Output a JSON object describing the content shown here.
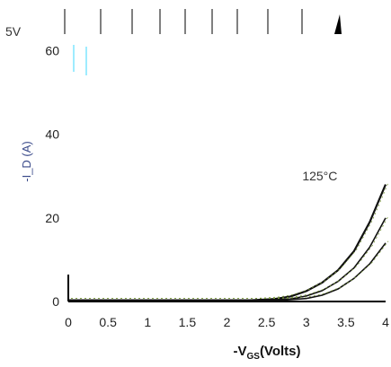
{
  "chart_data": {
    "type": "line",
    "title": "",
    "xlabel_main": "-V",
    "xlabel_sub": "GS",
    "xlabel_tail": "(Volts)",
    "ylabel": "-I_D (A)",
    "top_fragment": "5V",
    "xlim": [
      0,
      4
    ],
    "ylim": [
      0,
      70
    ],
    "x_ticks": [
      "0",
      "0.5",
      "1",
      "1.5",
      "2",
      "2.5",
      "3",
      "3.5",
      "4"
    ],
    "x_tick_values": [
      0,
      0.5,
      1,
      1.5,
      2,
      2.5,
      3,
      3.5,
      4
    ],
    "y_ticks": [
      "0",
      "20",
      "40",
      "60"
    ],
    "y_tick_values": [
      0,
      20,
      40,
      60
    ],
    "annotations": [
      {
        "text": "125°C",
        "x": 2.95,
        "y": 29
      }
    ],
    "series": [
      {
        "color": "#111111",
        "x": [
          0,
          2.3,
          2.6,
          2.8,
          3.0,
          3.2,
          3.4,
          3.6,
          3.8,
          4.0
        ],
        "y": [
          0.3,
          0.3,
          0.6,
          1.2,
          2.5,
          4.5,
          7.5,
          12,
          19,
          28
        ]
      },
      {
        "color": "#111111",
        "x": [
          0,
          2.5,
          2.8,
          3.0,
          3.2,
          3.4,
          3.6,
          3.8,
          4.0
        ],
        "y": [
          0.3,
          0.3,
          0.6,
          1.3,
          2.6,
          4.8,
          8,
          13,
          20
        ]
      },
      {
        "color": "#111111",
        "x": [
          0,
          2.7,
          3.0,
          3.2,
          3.4,
          3.6,
          3.8,
          4.0
        ],
        "y": [
          0.3,
          0.3,
          0.7,
          1.5,
          3,
          5.5,
          9,
          14
        ]
      }
    ],
    "colors": {
      "axis": "#000000",
      "curve": "#111111",
      "faint_trace": "#7a9a3a",
      "ylabel": "#3a4a8a"
    }
  }
}
